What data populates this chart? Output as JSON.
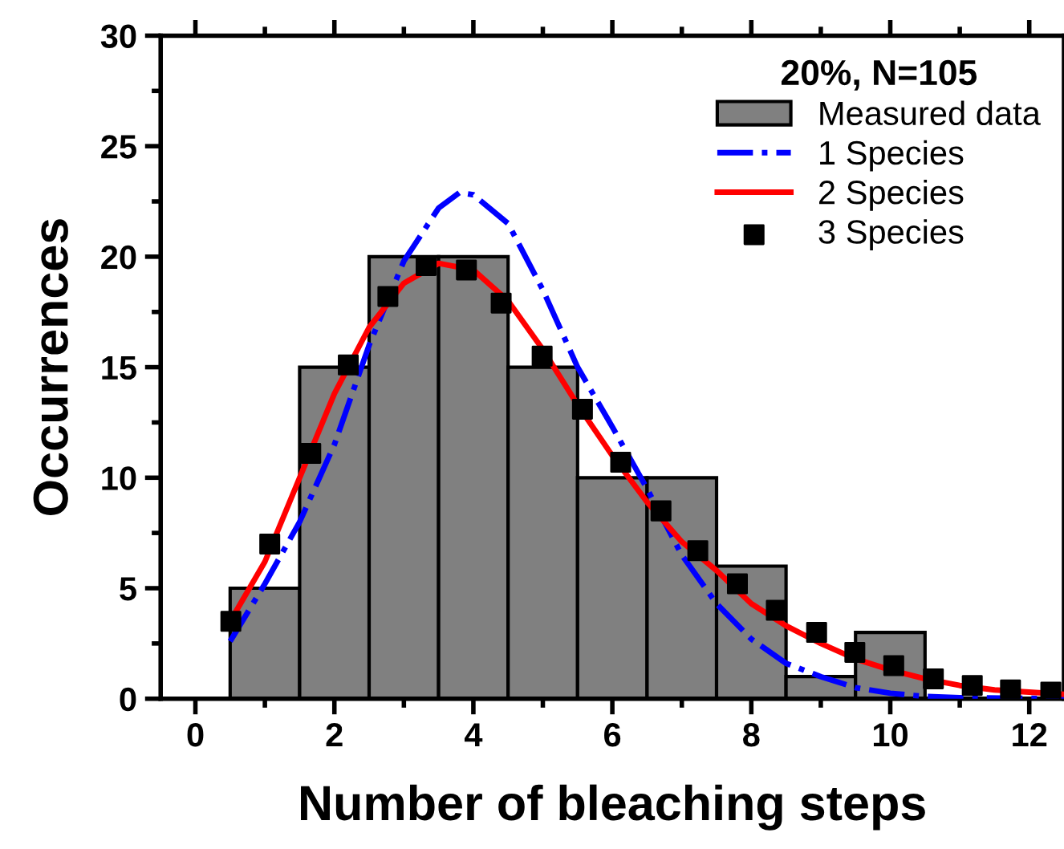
{
  "chart_data": {
    "type": "histogram",
    "xlabel": "Number of bleaching steps",
    "ylabel": "Occurrences",
    "legend_title": "20%, N=105",
    "legend": "top right",
    "grid": false,
    "xlim": [
      -0.5,
      12.5
    ],
    "xticks": [
      0,
      2,
      4,
      6,
      8,
      10,
      12
    ],
    "ylim": [
      0,
      30
    ],
    "yticks": [
      0,
      5,
      10,
      15,
      20,
      25,
      30
    ],
    "series": [
      {
        "name": "Measured data",
        "color": "#808080",
        "bins": [
          0.5,
          1.5,
          2.5,
          3.5,
          4.5,
          5.5,
          6.5,
          7.5,
          8.5,
          9.5,
          10.5
        ],
        "values": [
          5,
          15,
          20,
          20,
          15,
          10,
          10,
          6,
          1,
          3
        ]
      },
      {
        "type": "line",
        "name": "1 Species",
        "color": "#0000ff",
        "line_style": "dashdot",
        "x": [
          0.5,
          1.0,
          1.5,
          2.0,
          2.5,
          3.0,
          3.5,
          3.8,
          4.0,
          4.5,
          5.0,
          5.5,
          6.0,
          6.5,
          7.0,
          7.5,
          8.0,
          8.5,
          9.0,
          9.5,
          10.0,
          10.5,
          11.0,
          12.5
        ],
        "values": [
          2.6,
          5.2,
          8.0,
          11.5,
          16.0,
          19.8,
          22.2,
          22.9,
          22.8,
          21.5,
          18.5,
          15.0,
          12.3,
          9.5,
          6.5,
          4.3,
          2.7,
          1.6,
          1.0,
          0.5,
          0.25,
          0.1,
          0.05,
          0
        ]
      },
      {
        "type": "line",
        "name": "2 Species",
        "color": "#ff0000",
        "line_style": "solid",
        "x": [
          0.5,
          1.0,
          1.5,
          2.0,
          2.5,
          3.0,
          3.5,
          4.0,
          4.5,
          5.0,
          5.5,
          6.0,
          6.5,
          7.0,
          7.5,
          8.0,
          8.5,
          9.0,
          9.5,
          10.0,
          10.5,
          11.0,
          11.5,
          12.0,
          12.5
        ],
        "values": [
          3.5,
          6.2,
          10.0,
          13.8,
          16.8,
          18.8,
          19.7,
          19.4,
          18.0,
          15.8,
          13.3,
          11.0,
          8.9,
          7.1,
          5.8,
          4.3,
          3.3,
          2.5,
          1.8,
          1.3,
          0.9,
          0.6,
          0.4,
          0.3,
          0.2
        ]
      },
      {
        "type": "scatter",
        "name": "3 Species",
        "color": "#000000",
        "marker": "square",
        "x": [
          0.51,
          1.07,
          1.66,
          2.2,
          2.77,
          3.32,
          3.9,
          4.4,
          4.99,
          5.57,
          6.12,
          6.7,
          7.23,
          7.8,
          8.36,
          8.94,
          9.49,
          10.05,
          10.62,
          11.18,
          11.73,
          12.31
        ],
        "values": [
          3.5,
          7.0,
          11.1,
          15.1,
          18.2,
          19.6,
          19.4,
          17.9,
          15.5,
          13.1,
          10.7,
          8.5,
          6.7,
          5.2,
          4.0,
          3.0,
          2.1,
          1.5,
          0.9,
          0.6,
          0.4,
          0.3
        ]
      }
    ]
  }
}
